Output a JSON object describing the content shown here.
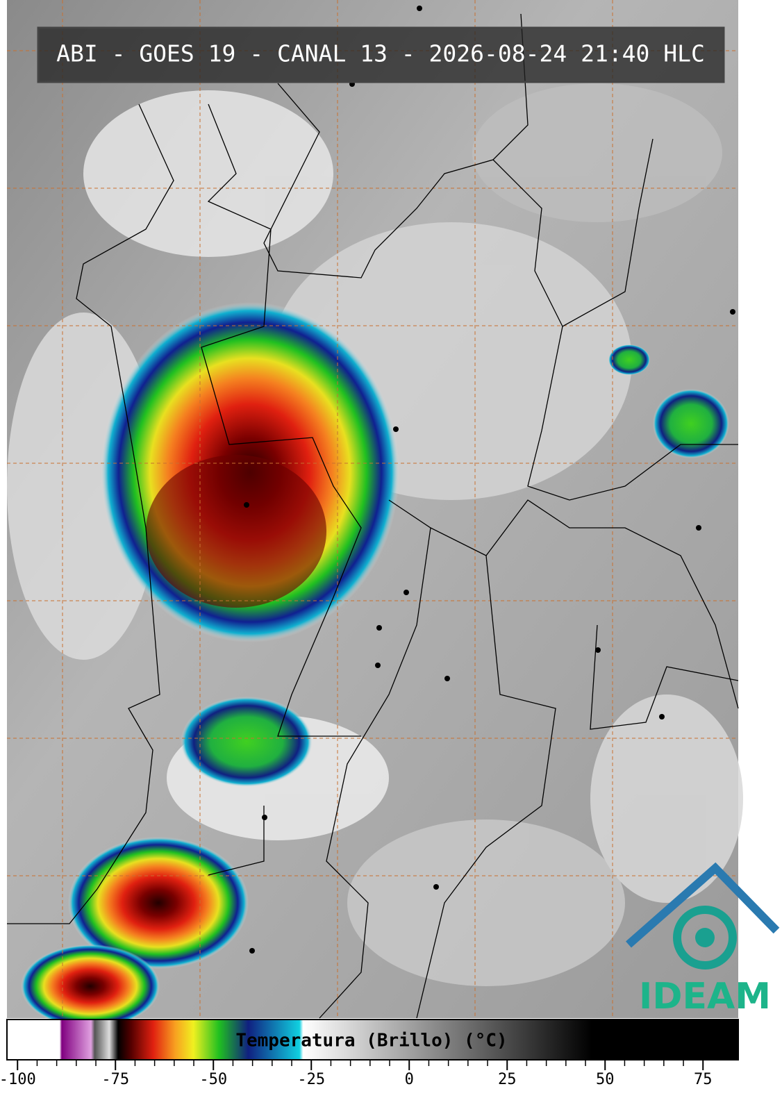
{
  "header": {
    "title": "ABI - GOES 19 - CANAL 13 - 2026-08-24 21:40 HLC"
  },
  "colorbar": {
    "label": "Temperatura (Brillo) (°C)",
    "lim": [
      -102.7,
      84
    ],
    "ticks": [
      -100,
      -75,
      -50,
      -25,
      0,
      25,
      50,
      75
    ]
  },
  "logo": {
    "text": "IDEAM"
  }
}
